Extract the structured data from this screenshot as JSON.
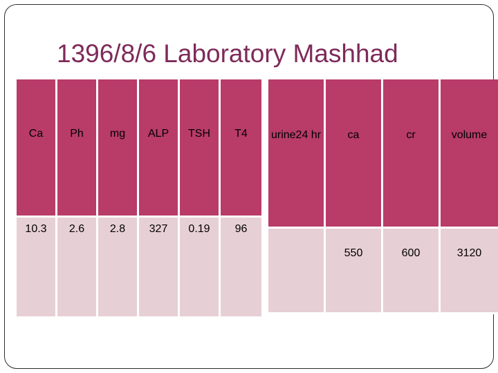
{
  "title": "1396/8/6 Laboratory Mashhad",
  "blood_table": {
    "headers": [
      "Ca",
      "Ph",
      "mg",
      "ALP",
      "TSH",
      "T4"
    ],
    "values": [
      "10.3",
      "2.6",
      "2.8",
      "327",
      "0.19",
      "96"
    ]
  },
  "urine_table": {
    "headers": [
      "urine24 hr",
      "ca",
      "cr",
      "volume"
    ],
    "values": [
      "",
      "550",
      "600",
      "3120"
    ]
  },
  "colors": {
    "header_bg": "#b83b68",
    "row_bg": "#e7cfd6",
    "title": "#7e2a5a"
  }
}
